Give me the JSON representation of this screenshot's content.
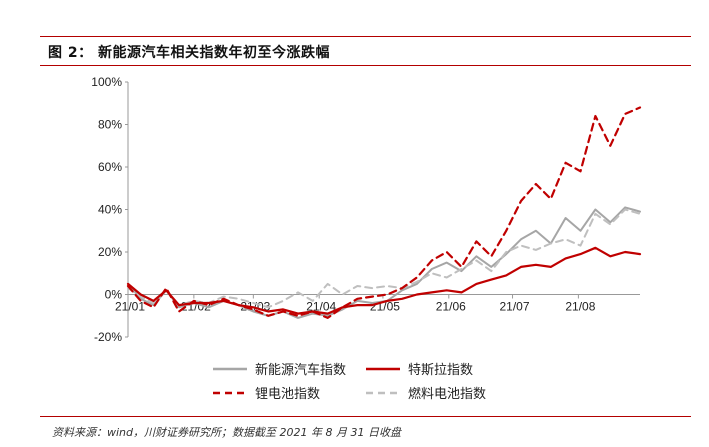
{
  "figure": {
    "title": "图 2：  新能源汽车相关指数年初至今涨跌幅",
    "source": "资料来源：wind，川财证券研究所；数据截至 2021 年 8 月 31 日收盘"
  },
  "chart_data": {
    "type": "line",
    "title": "",
    "xlabel": "",
    "ylabel": "",
    "ylim": [
      -20,
      100
    ],
    "yticks": [
      "100%",
      "80%",
      "60%",
      "40%",
      "20%",
      "0%",
      "-20%"
    ],
    "ytick_values": [
      100,
      80,
      60,
      40,
      20,
      0,
      -20
    ],
    "xlim": [
      0,
      241
    ],
    "xticks": [
      "21/01",
      "21/02",
      "21/03",
      "21/04",
      "21/05",
      "21/06",
      "21/07",
      "21/08"
    ],
    "xtick_positions": [
      0,
      31,
      59,
      90,
      120,
      151,
      181,
      212
    ],
    "grid": false,
    "legend_position": "bottom",
    "series": [
      {
        "name": "新能源汽车指数",
        "color": "#a6a6a6",
        "style": "solid",
        "x": [
          0,
          6,
          12,
          18,
          24,
          31,
          38,
          45,
          52,
          59,
          66,
          73,
          80,
          87,
          94,
          101,
          108,
          115,
          122,
          129,
          136,
          143,
          150,
          157,
          164,
          171,
          178,
          185,
          192,
          199,
          206,
          213,
          220,
          227,
          234,
          241
        ],
        "values": [
          5,
          -2,
          -5,
          2,
          -6,
          -4,
          -6,
          -3,
          -5,
          -8,
          -10,
          -8,
          -11,
          -9,
          -10,
          -7,
          -3,
          -4,
          -3,
          2,
          5,
          12,
          15,
          11,
          18,
          13,
          19,
          26,
          30,
          24,
          36,
          30,
          40,
          34,
          41,
          39
        ]
      },
      {
        "name": "特斯拉指数",
        "color": "#c00000",
        "style": "solid",
        "x": [
          0,
          6,
          12,
          18,
          24,
          31,
          38,
          45,
          52,
          59,
          66,
          73,
          80,
          87,
          94,
          101,
          108,
          115,
          122,
          129,
          136,
          143,
          150,
          157,
          164,
          171,
          178,
          185,
          192,
          199,
          206,
          213,
          220,
          227,
          234,
          241
        ],
        "values": [
          5,
          0,
          -3,
          2,
          -5,
          -4,
          -4,
          -3,
          -5,
          -6,
          -8,
          -7,
          -9,
          -8,
          -9,
          -6,
          -5,
          -5,
          -3,
          -2,
          0,
          1,
          2,
          1,
          5,
          7,
          9,
          13,
          14,
          13,
          17,
          19,
          22,
          18,
          20,
          19
        ]
      },
      {
        "name": "锂电池指数",
        "color": "#c00000",
        "style": "dashed",
        "x": [
          0,
          6,
          12,
          18,
          24,
          31,
          38,
          45,
          52,
          59,
          66,
          73,
          80,
          87,
          94,
          101,
          108,
          115,
          122,
          129,
          136,
          143,
          150,
          157,
          164,
          171,
          178,
          185,
          192,
          199,
          206,
          213,
          220,
          227,
          234,
          241
        ],
        "values": [
          4,
          -3,
          -6,
          3,
          -8,
          -3,
          -5,
          -2,
          -5,
          -7,
          -10,
          -8,
          -10,
          -8,
          -11,
          -6,
          -2,
          -1,
          0,
          3,
          8,
          16,
          20,
          13,
          25,
          18,
          30,
          44,
          52,
          45,
          62,
          58,
          84,
          70,
          85,
          88
        ]
      },
      {
        "name": "燃料电池指数",
        "color": "#bfbfbf",
        "style": "dashed",
        "x": [
          0,
          6,
          12,
          18,
          24,
          31,
          38,
          45,
          52,
          59,
          66,
          73,
          80,
          87,
          94,
          101,
          108,
          115,
          122,
          129,
          136,
          143,
          150,
          157,
          164,
          171,
          178,
          185,
          192,
          199,
          206,
          213,
          220,
          227,
          234,
          241
        ],
        "values": [
          3,
          -1,
          -4,
          2,
          -5,
          -3,
          -4,
          -1,
          -2,
          -4,
          -6,
          -3,
          1,
          -3,
          5,
          0,
          4,
          3,
          4,
          3,
          6,
          10,
          8,
          12,
          16,
          11,
          20,
          23,
          21,
          24,
          26,
          23,
          38,
          33,
          40,
          38
        ]
      }
    ]
  }
}
